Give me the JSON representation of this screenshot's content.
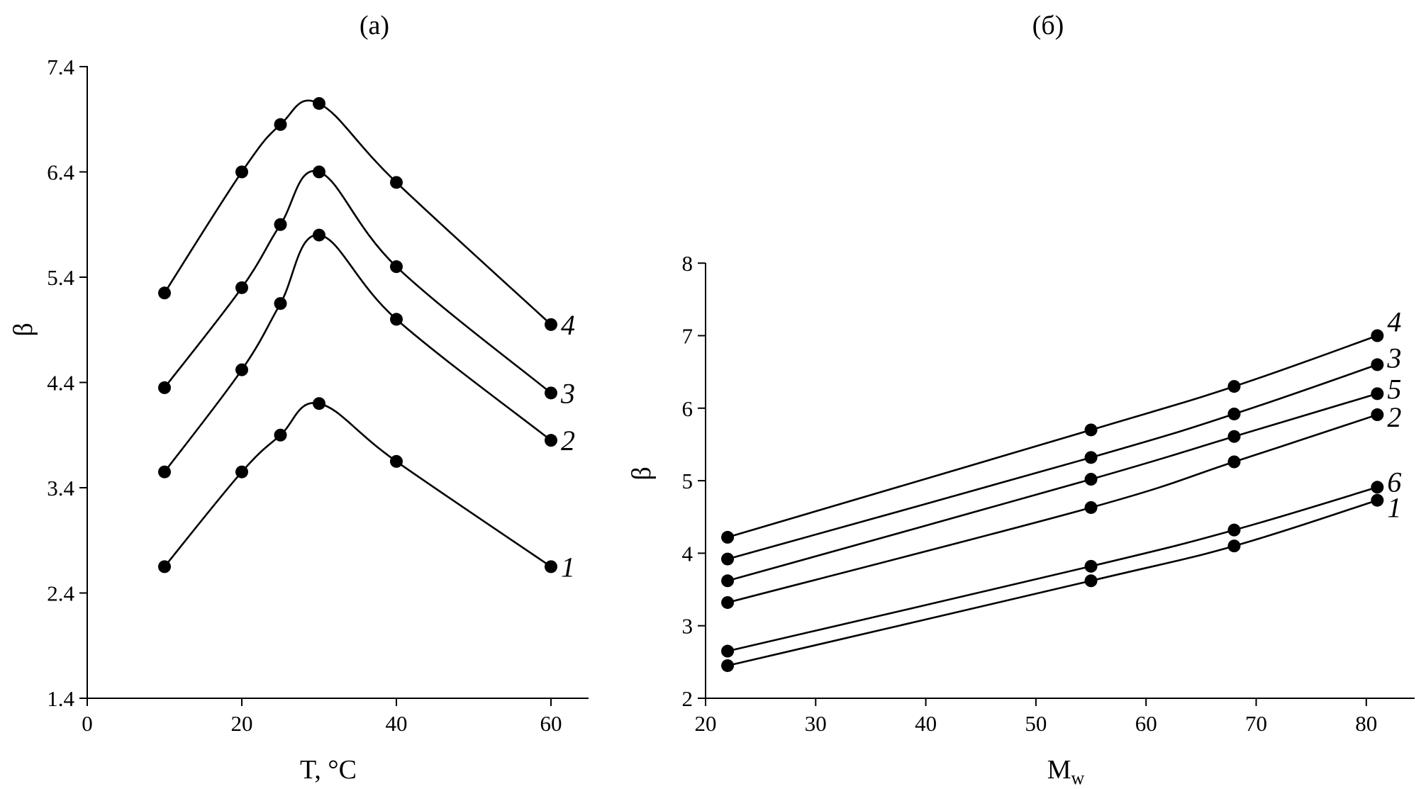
{
  "chart_data": [
    {
      "type": "line",
      "title": "(а)",
      "xlabel": "T, °C",
      "ylabel": "β",
      "xlim": [
        0,
        65
      ],
      "ylim": [
        1.4,
        7.4
      ],
      "xticks": [
        "0",
        "20",
        "40",
        "60"
      ],
      "yticks": [
        "1.4",
        "2.4",
        "3.4",
        "4.4",
        "5.4",
        "6.4",
        "7.4"
      ],
      "x": [
        10,
        20,
        25,
        30,
        40,
        60
      ],
      "series": [
        {
          "name": "1",
          "values": [
            2.65,
            3.55,
            3.9,
            4.2,
            3.65,
            2.65
          ]
        },
        {
          "name": "2",
          "values": [
            3.55,
            4.52,
            5.15,
            5.8,
            5.0,
            3.85
          ]
        },
        {
          "name": "3",
          "values": [
            4.35,
            5.3,
            5.9,
            6.4,
            5.5,
            4.3
          ]
        },
        {
          "name": "4",
          "values": [
            5.25,
            6.4,
            6.85,
            7.05,
            6.3,
            4.95
          ]
        }
      ]
    },
    {
      "type": "line",
      "title": "(б)",
      "xlabel": "M",
      "xlabel_sub": "w",
      "ylabel": "β",
      "xlim": [
        20,
        85
      ],
      "ylim": [
        2,
        8
      ],
      "xticks": [
        "20",
        "30",
        "40",
        "50",
        "60",
        "70",
        "80"
      ],
      "yticks": [
        "2",
        "3",
        "4",
        "5",
        "6",
        "7",
        "8"
      ],
      "x": [
        22,
        55,
        68,
        81
      ],
      "series": [
        {
          "name": "1",
          "values": [
            2.45,
            3.62,
            4.1,
            4.73
          ]
        },
        {
          "name": "6",
          "values": [
            2.65,
            3.82,
            4.32,
            4.91
          ]
        },
        {
          "name": "2",
          "values": [
            3.32,
            4.63,
            5.26,
            5.91
          ]
        },
        {
          "name": "5",
          "values": [
            3.62,
            5.02,
            5.61,
            6.2
          ]
        },
        {
          "name": "3",
          "values": [
            3.92,
            5.32,
            5.92,
            6.6
          ]
        },
        {
          "name": "4",
          "values": [
            4.22,
            5.7,
            6.3,
            7.0
          ]
        }
      ]
    }
  ]
}
